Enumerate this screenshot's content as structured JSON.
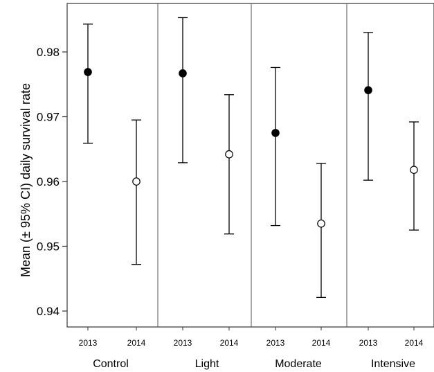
{
  "chart_data": {
    "type": "scatter",
    "ylabel": "Mean (± 95% CI) daily survival rate",
    "ylim": [
      0.9375,
      0.9875
    ],
    "yticks": [
      "0.94",
      "0.95",
      "0.96",
      "0.97",
      "0.98"
    ],
    "groups": [
      {
        "label": "Control",
        "points": [
          {
            "year": "2013",
            "mean": 0.9769,
            "lower": 0.9659,
            "upper": 0.9843,
            "filled": true
          },
          {
            "year": "2014",
            "mean": 0.96,
            "lower": 0.9472,
            "upper": 0.9695,
            "filled": false
          }
        ]
      },
      {
        "label": "Light",
        "points": [
          {
            "year": "2013",
            "mean": 0.9767,
            "lower": 0.9629,
            "upper": 0.9853,
            "filled": true
          },
          {
            "year": "2014",
            "mean": 0.9642,
            "lower": 0.9519,
            "upper": 0.9734,
            "filled": false
          }
        ]
      },
      {
        "label": "Moderate",
        "points": [
          {
            "year": "2013",
            "mean": 0.9675,
            "lower": 0.9532,
            "upper": 0.9776,
            "filled": true
          },
          {
            "year": "2014",
            "mean": 0.9535,
            "lower": 0.9421,
            "upper": 0.9628,
            "filled": false
          }
        ]
      },
      {
        "label": "Intensive",
        "points": [
          {
            "year": "2013",
            "mean": 0.9741,
            "lower": 0.9602,
            "upper": 0.983,
            "filled": true
          },
          {
            "year": "2014",
            "mean": 0.9618,
            "lower": 0.9525,
            "upper": 0.9692,
            "filled": false
          }
        ]
      }
    ],
    "marker_colors": {
      "filled": "#000000",
      "open": "#ffffff",
      "stroke": "#000000"
    }
  }
}
